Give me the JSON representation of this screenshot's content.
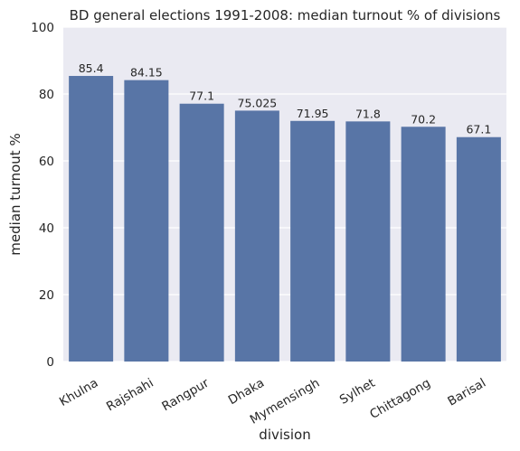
{
  "chart_data": {
    "type": "bar",
    "title": "BD general elections 1991-2008: median turnout % of divisions",
    "xlabel": "division",
    "ylabel": "median turnout %",
    "categories": [
      "Khulna",
      "Rajshahi",
      "Rangpur",
      "Dhaka",
      "Mymensingh",
      "Sylhet",
      "Chittagong",
      "Barisal"
    ],
    "values": [
      85.4,
      84.15,
      77.1,
      75.025,
      71.95,
      71.8,
      70.2,
      67.1
    ],
    "data_labels": [
      "85.4",
      "84.15",
      "77.1",
      "75.025",
      "71.95",
      "71.8",
      "70.2",
      "67.1"
    ],
    "ylim": [
      0,
      100
    ],
    "yticks": [
      0,
      20,
      40,
      60,
      80,
      100
    ],
    "ytick_labels": [
      "0",
      "20",
      "40",
      "60",
      "80",
      "100"
    ],
    "grid": true,
    "legend": "none",
    "colors": {
      "bar": "#5875a6",
      "plot_background": "#eaeaf2",
      "grid": "#ffffff",
      "text": "#262626"
    }
  }
}
